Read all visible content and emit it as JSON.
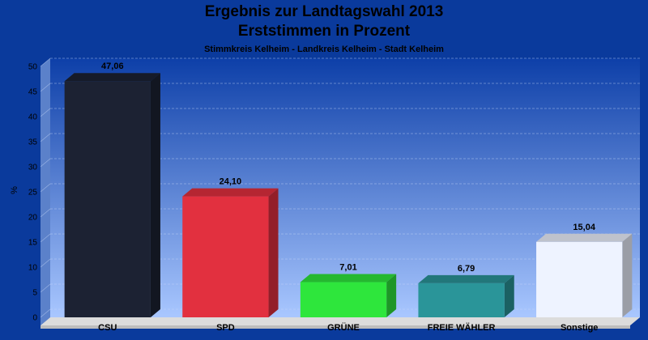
{
  "chart_data": {
    "type": "bar",
    "title": "Ergebnis zur Landtagswahl 2013",
    "subtitle": "Erststimmen in Prozent",
    "caption": "Stimmkreis Kelheim - Landkreis Kelheim - Stadt Kelheim",
    "ylabel": "%",
    "xlabel": "",
    "ylim": [
      0,
      50
    ],
    "yticks": [
      0,
      5,
      10,
      15,
      20,
      25,
      30,
      35,
      40,
      45,
      50
    ],
    "categories": [
      "CSU",
      "SPD",
      "GRÜNE",
      "FREIE WÄHLER",
      "Sonstige"
    ],
    "values": [
      47.06,
      24.1,
      7.01,
      6.79,
      15.04
    ],
    "value_labels": [
      "47,06",
      "24,10",
      "7,01",
      "6,79",
      "15,04"
    ],
    "colors": [
      "#1c2233",
      "#e2303f",
      "#2ee63c",
      "#2a9599",
      "#eef3ff"
    ],
    "grid": true,
    "legend": "none"
  }
}
